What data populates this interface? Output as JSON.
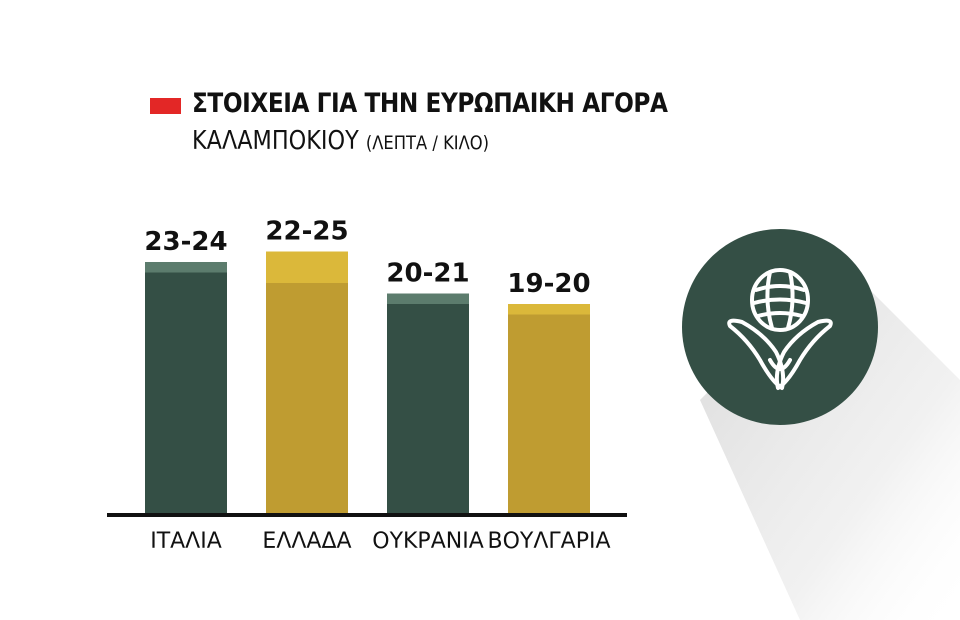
{
  "title": "ΣΤΟΙΧΕΙΑ ΓΙΑ ΤΗΝ ΕΥΡΩΠΑΙΚΗ ΑΓΟΡΑ",
  "subtitle": "ΚΑΛΑΜΠΟΚΙΟΥ",
  "unit": "(ΛΕΠΤΑ / ΚΙΛΟ)",
  "legend_color": "#e32726",
  "icon": "corn-icon",
  "chart_data": {
    "type": "bar",
    "title": "ΣΤΟΙΧΕΙΑ ΓΙΑ ΤΗΝ ΕΥΡΩΠΑΙΚΗ ΑΓΟΡΑ ΚΑΛΑΜΠΟΚΙΟΥ",
    "ylabel": "(ΛΕΠΤΑ / ΚΙΛΟ)",
    "categories": [
      "ΙΤΑΛΙΑ",
      "ΕΛΛΑΔΑ",
      "ΟΥΚΡΑΝΙΑ",
      "ΒΟΥΛΓΑΡΙΑ"
    ],
    "ranges": [
      [
        23,
        24
      ],
      [
        22,
        25
      ],
      [
        20,
        21
      ],
      [
        19,
        20
      ]
    ],
    "labels": [
      "23-24",
      "22-25",
      "20-21",
      "19-20"
    ],
    "ylim": [
      0,
      25
    ],
    "colors": [
      {
        "base": "#344f45",
        "top": "#5c7c6d"
      },
      {
        "base": "#bf9c31",
        "top": "#dbb83a"
      },
      {
        "base": "#344f45",
        "top": "#5c7c6d"
      },
      {
        "base": "#bf9c31",
        "top": "#dbb83a"
      }
    ],
    "grid": false
  }
}
